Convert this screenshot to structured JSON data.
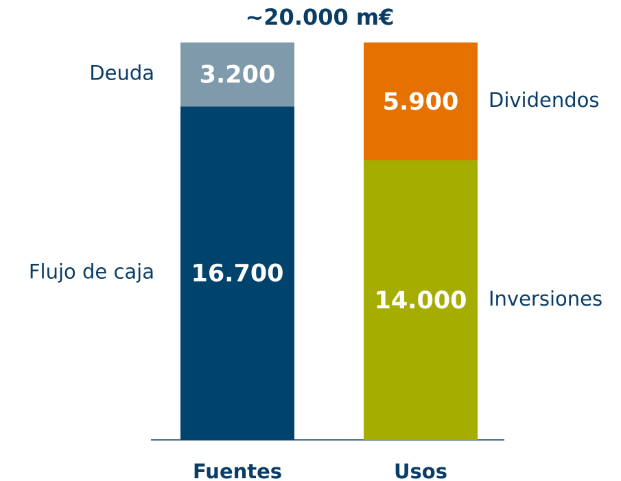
{
  "chart_data": {
    "type": "bar",
    "stacked": true,
    "title": "~20.000 m€",
    "bars": [
      {
        "category": "Fuentes",
        "label_side": "left",
        "segments": [
          {
            "name": "Flujo de caja",
            "value": 16700,
            "value_label": "16.700",
            "color": "#00446e"
          },
          {
            "name": "Deuda",
            "value": 3200,
            "value_label": "3.200",
            "color": "#7f9aab"
          }
        ]
      },
      {
        "category": "Usos",
        "label_side": "right",
        "segments": [
          {
            "name": "Inversiones",
            "value": 14000,
            "value_label": "14.000",
            "color": "#a5ad00"
          },
          {
            "name": "Dividendos",
            "value": 5900,
            "value_label": "5.900",
            "color": "#e57200"
          }
        ]
      }
    ]
  }
}
